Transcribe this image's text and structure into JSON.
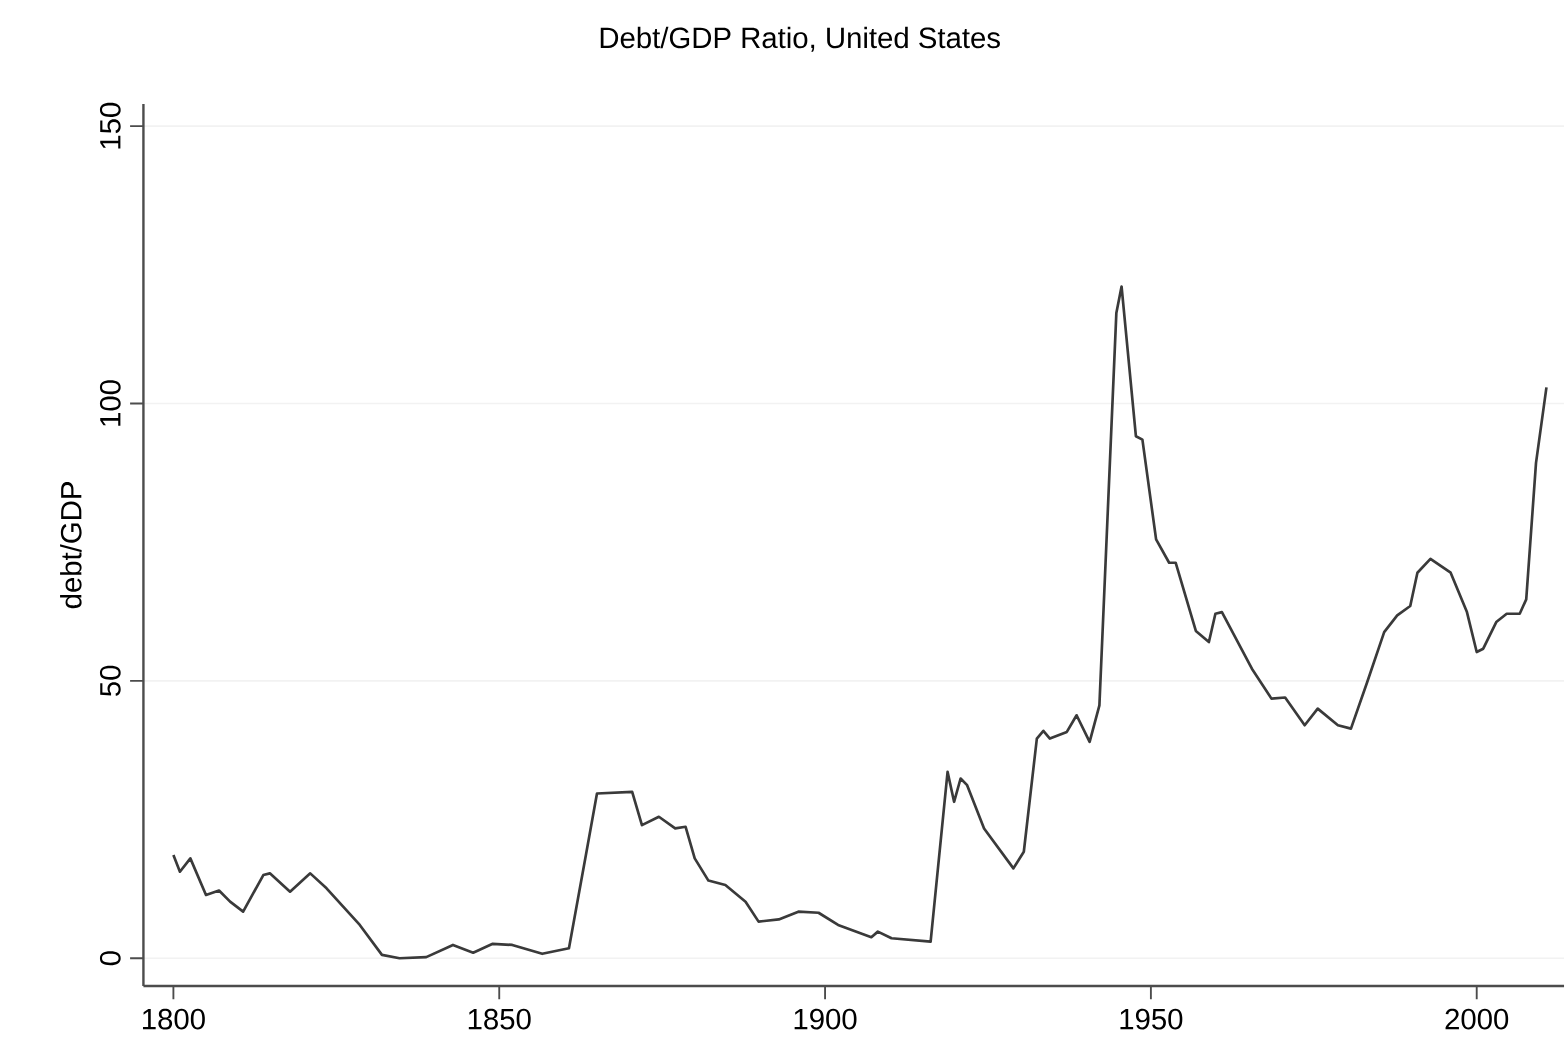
{
  "chart_data": {
    "type": "line",
    "title": "Debt/GDP Ratio, United States",
    "ylabel": "debt/GDP",
    "xlim": [
      1795.4,
      2013.4
    ],
    "ylim": [
      -5,
      154
    ],
    "xticks": [
      1800,
      1850,
      1900,
      1950,
      2000
    ],
    "yticks": [
      0,
      50,
      100,
      150
    ],
    "grid": "y",
    "color": "#3a3a3a",
    "line_style": "solid",
    "x": [
      1800,
      1801,
      1802.6,
      1805,
      1807,
      1808.7,
      1810.7,
      1813.8,
      1814.8,
      1817.9,
      1821,
      1823.5,
      1828.6,
      1832,
      1834.7,
      1838.8,
      1842.9,
      1846,
      1849,
      1852,
      1856.6,
      1860.7,
      1863.3,
      1865,
      1870.4,
      1871.9,
      1874.5,
      1877,
      1878.6,
      1880,
      1882.1,
      1884.7,
      1887.8,
      1889.8,
      1892.9,
      1895.9,
      1899,
      1902,
      1907.1,
      1908.1,
      1910.2,
      1916.2,
      1918.8,
      1919.8,
      1920.8,
      1921.8,
      1924.4,
      1928.9,
      1930.5,
      1932.5,
      1933.5,
      1934.5,
      1937.1,
      1938.6,
      1940.6,
      1942.1,
      1944.7,
      1945.5,
      1947.7,
      1948.7,
      1950.8,
      1952.8,
      1953.8,
      1956.9,
      1958.9,
      1959.9,
      1960.9,
      1965.5,
      1968.5,
      1970.6,
      1973.6,
      1975.6,
      1978.7,
      1980.7,
      1983.2,
      1985.8,
      1987.8,
      1989.8,
      1990.9,
      1992.9,
      1996,
      1998.5,
      2000,
      2001,
      2003,
      2004.6,
      2006.6,
      2007.6,
      2009.1,
      2010.7
    ],
    "values": [
      18.6,
      15.6,
      18,
      11.4,
      12.2,
      10.2,
      8.4,
      15,
      15.3,
      12,
      15.3,
      12.6,
      6,
      0.6,
      0,
      0.2,
      2.4,
      1,
      2.6,
      2.4,
      0.8,
      1.8,
      18.6,
      29.7,
      30,
      24,
      25.5,
      23.4,
      23.7,
      18,
      14,
      13.2,
      10.2,
      6.6,
      7,
      8.4,
      8.2,
      6,
      3.8,
      4.8,
      3.6,
      3,
      33.6,
      28.2,
      32.4,
      31.2,
      23.4,
      16.2,
      19.2,
      39.6,
      41,
      39.6,
      40.8,
      43.8,
      39,
      45.6,
      116.3,
      121.1,
      94.1,
      93.5,
      75.5,
      71.3,
      71.3,
      59,
      57,
      62.1,
      62.4,
      52.2,
      46.8,
      47,
      42,
      45,
      42,
      41.4,
      49.8,
      58.8,
      61.8,
      63.5,
      69.5,
      72,
      69.5,
      62.4,
      55.2,
      55.8,
      60.6,
      62.1,
      62.1,
      64.7,
      89.3,
      102.9
    ]
  }
}
